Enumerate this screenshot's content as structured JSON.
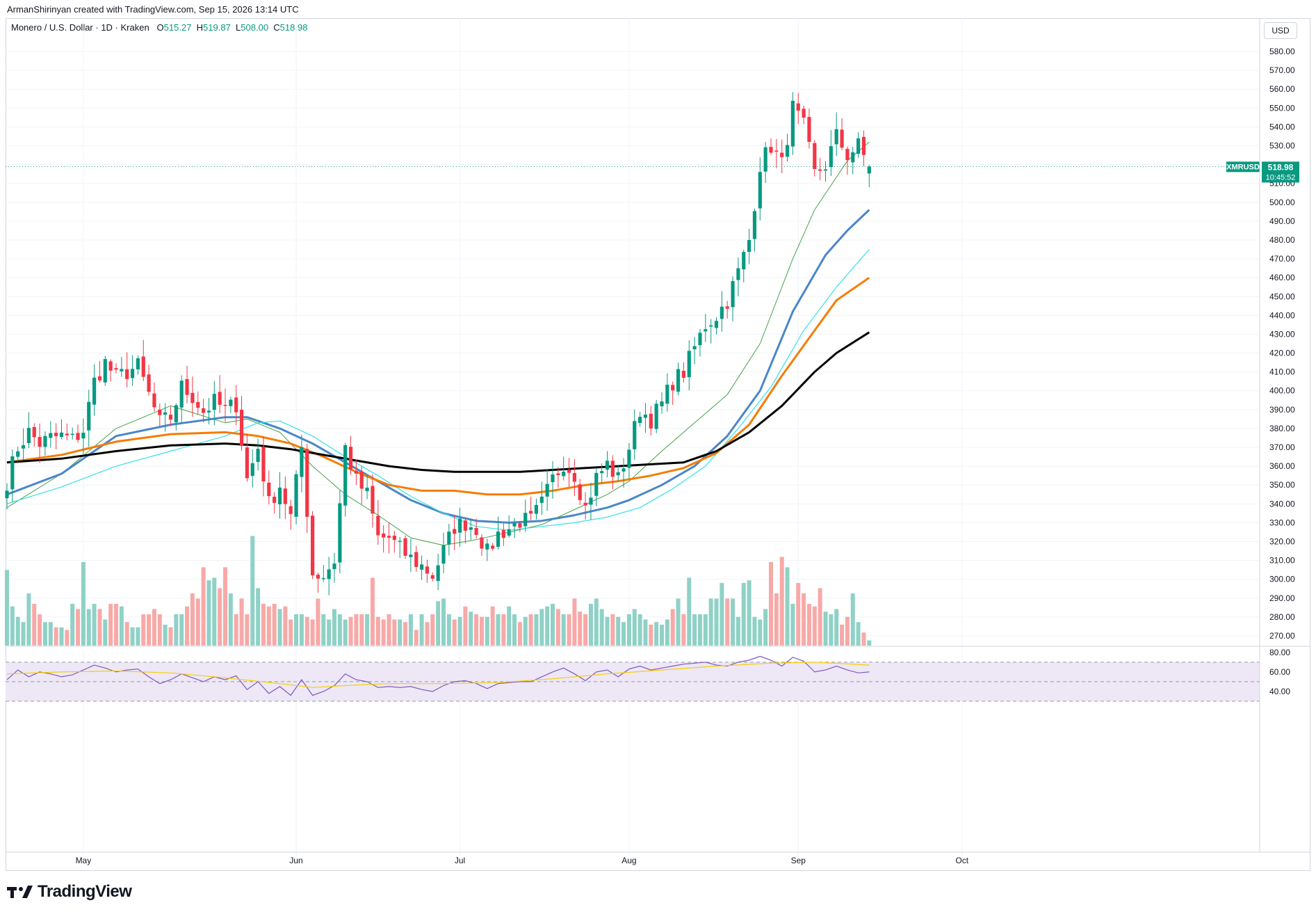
{
  "header": {
    "credit": "ArmanShirinyan created with TradingView.com, Sep 15, 2026 13:14 UTC"
  },
  "legend": {
    "symbol": "Monero / U.S. Dollar · 1D · Kraken",
    "o_label": "O",
    "o_value": "515.27",
    "h_label": "H",
    "h_value": "519.87",
    "l_label": "L",
    "l_value": "508.00",
    "c_label": "C",
    "c_value": "518.98"
  },
  "currency_button": "USD",
  "price_tag": {
    "symbol": "XMRUSD",
    "price": "518.98",
    "countdown": "10:45:52",
    "color": "#089981"
  },
  "brand": {
    "name": "TradingView"
  },
  "colors": {
    "up": "#089981",
    "down": "#f23645",
    "vol_up": "#8fd1c6",
    "vol_down": "#f7a9a7",
    "ma20": "#43a047",
    "ma50": "#4a86c8",
    "ma_cyan": "#33e0e6",
    "ma100": "#f57c00",
    "ma200": "#000000",
    "rsi": "#7e57c2",
    "rsi_ma": "#f5d000",
    "rsi_band": "#ede7f6"
  },
  "chart_data": {
    "type": "candlestick",
    "title": "Monero / U.S. Dollar · 1D · Kraken",
    "y_axis": {
      "min": 265,
      "max": 585,
      "ticks": [
        580,
        570,
        560,
        550,
        540,
        530,
        520,
        510,
        500,
        490,
        480,
        470,
        460,
        450,
        440,
        430,
        420,
        410,
        400,
        390,
        380,
        370,
        360,
        350,
        340,
        330,
        320,
        310,
        300,
        290,
        280,
        270
      ]
    },
    "x_ticks": [
      {
        "label": "May",
        "index": 14
      },
      {
        "label": "Jun",
        "index": 53
      },
      {
        "label": "Jul",
        "index": 83
      },
      {
        "label": "Aug",
        "index": 114
      },
      {
        "label": "Sep",
        "index": 145
      },
      {
        "label": "Oct",
        "index": 175
      }
    ],
    "last_index": 158,
    "anchors": [
      [
        0,
        352
      ],
      [
        2,
        370
      ],
      [
        4,
        378
      ],
      [
        6,
        372
      ],
      [
        8,
        375
      ],
      [
        10,
        376
      ],
      [
        12,
        374
      ],
      [
        14,
        379
      ],
      [
        16,
        405
      ],
      [
        18,
        415
      ],
      [
        20,
        407
      ],
      [
        22,
        410
      ],
      [
        24,
        413
      ],
      [
        26,
        398
      ],
      [
        28,
        383
      ],
      [
        30,
        386
      ],
      [
        32,
        402
      ],
      [
        34,
        397
      ],
      [
        36,
        389
      ],
      [
        38,
        394
      ],
      [
        40,
        390
      ],
      [
        42,
        393
      ],
      [
        44,
        353
      ],
      [
        46,
        370
      ],
      [
        48,
        340
      ],
      [
        50,
        350
      ],
      [
        52,
        333
      ],
      [
        54,
        370
      ],
      [
        56,
        303
      ],
      [
        58,
        302
      ],
      [
        60,
        310
      ],
      [
        62,
        370
      ],
      [
        64,
        352
      ],
      [
        66,
        345
      ],
      [
        68,
        322
      ],
      [
        70,
        322
      ],
      [
        72,
        316
      ],
      [
        74,
        311
      ],
      [
        76,
        307
      ],
      [
        78,
        302
      ],
      [
        80,
        315
      ],
      [
        82,
        328
      ],
      [
        84,
        330
      ],
      [
        86,
        327
      ],
      [
        88,
        314
      ],
      [
        90,
        324
      ],
      [
        92,
        327
      ],
      [
        94,
        331
      ],
      [
        96,
        331
      ],
      [
        98,
        340
      ],
      [
        100,
        353
      ],
      [
        102,
        362
      ],
      [
        104,
        356
      ],
      [
        106,
        338
      ],
      [
        108,
        354
      ],
      [
        110,
        361
      ],
      [
        112,
        353
      ],
      [
        114,
        370
      ],
      [
        116,
        390
      ],
      [
        118,
        385
      ],
      [
        120,
        393
      ],
      [
        122,
        405
      ],
      [
        124,
        410
      ],
      [
        126,
        423
      ],
      [
        128,
        435
      ],
      [
        130,
        440
      ],
      [
        132,
        448
      ],
      [
        134,
        463
      ],
      [
        136,
        480
      ],
      [
        138,
        520
      ],
      [
        140,
        530
      ],
      [
        142,
        520
      ],
      [
        144,
        550
      ],
      [
        146,
        540
      ],
      [
        148,
        515
      ],
      [
        150,
        520
      ],
      [
        152,
        535
      ],
      [
        154,
        525
      ],
      [
        156,
        530
      ],
      [
        158,
        518.98
      ]
    ],
    "volume": [
      145,
      75,
      55,
      45,
      100,
      80,
      60,
      45,
      45,
      35,
      35,
      30,
      80,
      70,
      160,
      70,
      80,
      70,
      50,
      80,
      80,
      75,
      45,
      35,
      35,
      60,
      60,
      70,
      60,
      40,
      35,
      60,
      60,
      75,
      100,
      90,
      150,
      125,
      130,
      110,
      150,
      100,
      60,
      90,
      60,
      210,
      110,
      80,
      75,
      80,
      70,
      75,
      50,
      60,
      60,
      55,
      50,
      90,
      60,
      50,
      70,
      60,
      50,
      55,
      60,
      60,
      60,
      130,
      55,
      50,
      60,
      50,
      50,
      45,
      60,
      30,
      60,
      45,
      60,
      85,
      90,
      60,
      50,
      55,
      75,
      65,
      60,
      55,
      55,
      75,
      60,
      60,
      75,
      60,
      45,
      55,
      60,
      60,
      70,
      75,
      80,
      70,
      60,
      60,
      90,
      65,
      60,
      80,
      90,
      70,
      55,
      60,
      55,
      45,
      60,
      70,
      60,
      50,
      40,
      45,
      40,
      50,
      70,
      90,
      60,
      130,
      60,
      60,
      60,
      90,
      90,
      120,
      90,
      90,
      55,
      120,
      125,
      55,
      50,
      70,
      160,
      100,
      170,
      150,
      80,
      120,
      100,
      80,
      75,
      110,
      65,
      60,
      70,
      40,
      55,
      100,
      45,
      25,
      10
    ],
    "ma_series": [
      {
        "name": "ma20",
        "points": [
          [
            0,
            338
          ],
          [
            10,
            356
          ],
          [
            20,
            380
          ],
          [
            30,
            392
          ],
          [
            40,
            383
          ],
          [
            44,
            385
          ],
          [
            50,
            378
          ],
          [
            56,
            360
          ],
          [
            62,
            345
          ],
          [
            68,
            334
          ],
          [
            74,
            322
          ],
          [
            80,
            318
          ],
          [
            86,
            321
          ],
          [
            92,
            325
          ],
          [
            98,
            329
          ],
          [
            104,
            337
          ],
          [
            110,
            345
          ],
          [
            114,
            352
          ],
          [
            120,
            368
          ],
          [
            126,
            383
          ],
          [
            132,
            398
          ],
          [
            138,
            425
          ],
          [
            144,
            470
          ],
          [
            148,
            496
          ],
          [
            154,
            522
          ],
          [
            158,
            532
          ]
        ]
      },
      {
        "name": "ma50",
        "points": [
          [
            0,
            345
          ],
          [
            10,
            356
          ],
          [
            20,
            376
          ],
          [
            30,
            382
          ],
          [
            40,
            386
          ],
          [
            44,
            386
          ],
          [
            50,
            380
          ],
          [
            56,
            372
          ],
          [
            62,
            362
          ],
          [
            68,
            352
          ],
          [
            74,
            342
          ],
          [
            80,
            335
          ],
          [
            86,
            331
          ],
          [
            92,
            330
          ],
          [
            98,
            331
          ],
          [
            104,
            334
          ],
          [
            110,
            338
          ],
          [
            114,
            342
          ],
          [
            120,
            350
          ],
          [
            126,
            360
          ],
          [
            132,
            376
          ],
          [
            138,
            400
          ],
          [
            144,
            442
          ],
          [
            150,
            472
          ],
          [
            154,
            485
          ],
          [
            158,
            496
          ]
        ]
      },
      {
        "name": "ma_cyan",
        "points": [
          [
            0,
            340
          ],
          [
            10,
            349
          ],
          [
            20,
            360
          ],
          [
            30,
            368
          ],
          [
            40,
            376
          ],
          [
            46,
            383
          ],
          [
            50,
            384
          ],
          [
            56,
            376
          ],
          [
            62,
            365
          ],
          [
            68,
            355
          ],
          [
            74,
            344
          ],
          [
            80,
            335
          ],
          [
            86,
            328
          ],
          [
            92,
            326
          ],
          [
            98,
            328
          ],
          [
            104,
            330
          ],
          [
            110,
            333
          ],
          [
            116,
            338
          ],
          [
            122,
            348
          ],
          [
            128,
            360
          ],
          [
            134,
            380
          ],
          [
            140,
            402
          ],
          [
            146,
            432
          ],
          [
            152,
            455
          ],
          [
            158,
            475
          ]
        ]
      },
      {
        "name": "ma100",
        "points": [
          [
            0,
            362
          ],
          [
            10,
            366
          ],
          [
            20,
            373
          ],
          [
            30,
            377
          ],
          [
            40,
            378
          ],
          [
            46,
            376
          ],
          [
            52,
            372
          ],
          [
            58,
            365
          ],
          [
            64,
            357
          ],
          [
            70,
            350
          ],
          [
            76,
            347
          ],
          [
            82,
            347
          ],
          [
            88,
            345
          ],
          [
            94,
            345
          ],
          [
            100,
            347
          ],
          [
            106,
            350
          ],
          [
            112,
            352
          ],
          [
            118,
            355
          ],
          [
            124,
            359
          ],
          [
            130,
            367
          ],
          [
            136,
            382
          ],
          [
            142,
            408
          ],
          [
            148,
            432
          ],
          [
            152,
            448
          ],
          [
            158,
            460
          ]
        ]
      },
      {
        "name": "ma200",
        "points": [
          [
            0,
            362
          ],
          [
            10,
            364
          ],
          [
            20,
            368
          ],
          [
            30,
            371
          ],
          [
            40,
            372
          ],
          [
            46,
            371
          ],
          [
            52,
            369
          ],
          [
            58,
            366
          ],
          [
            64,
            363
          ],
          [
            70,
            360
          ],
          [
            76,
            358
          ],
          [
            82,
            357
          ],
          [
            88,
            357
          ],
          [
            94,
            357
          ],
          [
            100,
            358
          ],
          [
            106,
            359
          ],
          [
            112,
            360
          ],
          [
            118,
            361
          ],
          [
            124,
            362
          ],
          [
            130,
            368
          ],
          [
            136,
            378
          ],
          [
            142,
            392
          ],
          [
            148,
            410
          ],
          [
            152,
            420
          ],
          [
            158,
            431
          ]
        ]
      }
    ],
    "rsi": {
      "scale": {
        "min": 30,
        "max": 82,
        "ticks": [
          80,
          60,
          40
        ],
        "bands": [
          70,
          50,
          30
        ]
      },
      "line": [
        [
          0,
          52
        ],
        [
          2,
          62
        ],
        [
          4,
          55
        ],
        [
          6,
          60
        ],
        [
          8,
          58
        ],
        [
          10,
          55
        ],
        [
          12,
          57
        ],
        [
          14,
          62
        ],
        [
          16,
          67
        ],
        [
          18,
          64
        ],
        [
          20,
          60
        ],
        [
          22,
          62
        ],
        [
          24,
          63
        ],
        [
          26,
          55
        ],
        [
          28,
          48
        ],
        [
          30,
          52
        ],
        [
          32,
          58
        ],
        [
          34,
          54
        ],
        [
          36,
          50
        ],
        [
          38,
          55
        ],
        [
          40,
          52
        ],
        [
          42,
          56
        ],
        [
          44,
          42
        ],
        [
          46,
          50
        ],
        [
          48,
          38
        ],
        [
          50,
          45
        ],
        [
          52,
          36
        ],
        [
          54,
          52
        ],
        [
          56,
          36
        ],
        [
          58,
          40
        ],
        [
          60,
          46
        ],
        [
          62,
          58
        ],
        [
          64,
          52
        ],
        [
          66,
          50
        ],
        [
          68,
          44
        ],
        [
          70,
          45
        ],
        [
          72,
          44
        ],
        [
          74,
          45
        ],
        [
          76,
          42
        ],
        [
          78,
          40
        ],
        [
          80,
          46
        ],
        [
          82,
          50
        ],
        [
          84,
          51
        ],
        [
          86,
          48
        ],
        [
          88,
          43
        ],
        [
          90,
          48
        ],
        [
          92,
          49
        ],
        [
          94,
          50
        ],
        [
          96,
          50
        ],
        [
          98,
          55
        ],
        [
          100,
          60
        ],
        [
          102,
          64
        ],
        [
          104,
          58
        ],
        [
          106,
          51
        ],
        [
          108,
          60
        ],
        [
          110,
          62
        ],
        [
          112,
          55
        ],
        [
          114,
          63
        ],
        [
          116,
          66
        ],
        [
          118,
          62
        ],
        [
          120,
          64
        ],
        [
          122,
          66
        ],
        [
          124,
          68
        ],
        [
          126,
          69
        ],
        [
          128,
          70
        ],
        [
          130,
          67
        ],
        [
          132,
          66
        ],
        [
          134,
          70
        ],
        [
          136,
          72
        ],
        [
          138,
          76
        ],
        [
          140,
          72
        ],
        [
          142,
          66
        ],
        [
          144,
          75
        ],
        [
          146,
          71
        ],
        [
          148,
          60
        ],
        [
          150,
          62
        ],
        [
          152,
          66
        ],
        [
          154,
          62
        ],
        [
          156,
          59
        ],
        [
          158,
          60
        ]
      ],
      "ma": [
        [
          0,
          58
        ],
        [
          10,
          60
        ],
        [
          20,
          61
        ],
        [
          30,
          59
        ],
        [
          40,
          54
        ],
        [
          50,
          48
        ],
        [
          56,
          44
        ],
        [
          62,
          46
        ],
        [
          70,
          48
        ],
        [
          80,
          48
        ],
        [
          90,
          49
        ],
        [
          100,
          53
        ],
        [
          110,
          58
        ],
        [
          120,
          62
        ],
        [
          130,
          66
        ],
        [
          140,
          69
        ],
        [
          148,
          70
        ],
        [
          158,
          67
        ]
      ]
    }
  }
}
